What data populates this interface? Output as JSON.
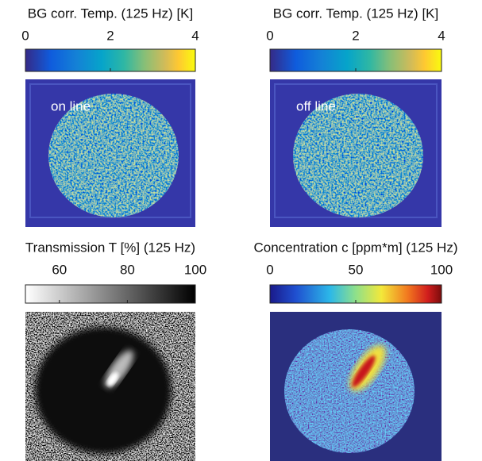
{
  "panels": [
    {
      "title": "BG corr. Temp. (125 Hz) [K]",
      "clim": [
        0,
        4
      ],
      "ticks": [
        0,
        2,
        4
      ],
      "colormap": "parula",
      "image_label": "on line"
    },
    {
      "title": "BG corr. Temp. (125 Hz) [K]",
      "clim": [
        0,
        4
      ],
      "ticks": [
        0,
        2,
        4
      ],
      "colormap": "parula",
      "image_label": "off line"
    },
    {
      "title": "Transmission T [%] (125 Hz)",
      "clim": [
        50,
        100
      ],
      "ticks": [
        60,
        80,
        100
      ],
      "colormap": "gray"
    },
    {
      "title": "Concentration c [ppm*m] (125 Hz)",
      "clim": [
        0,
        100
      ],
      "ticks": [
        0,
        50,
        100
      ],
      "colormap": "jet"
    }
  ]
}
